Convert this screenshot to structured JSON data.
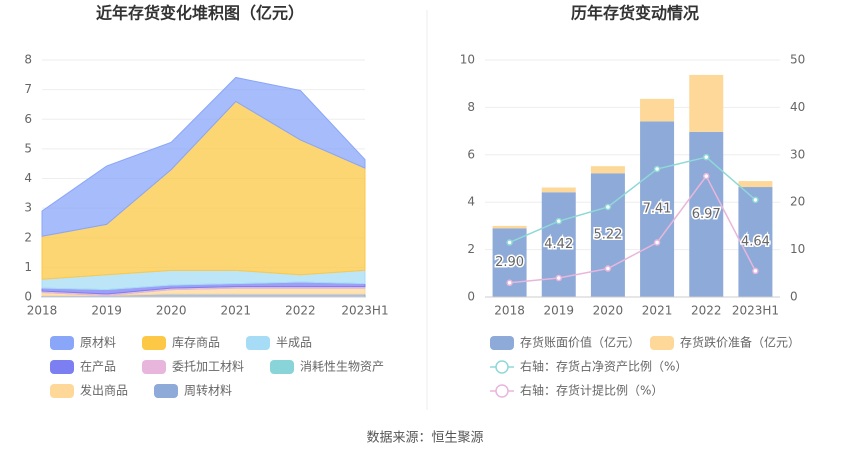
{
  "chart_data": [
    {
      "type": "stacked_area",
      "title": "近年存货变化堆积图（亿元）",
      "categories": [
        "2018",
        "2019",
        "2020",
        "2021",
        "2022",
        "2023H1"
      ],
      "ylim": [
        0,
        8
      ],
      "yticks": [
        0,
        1,
        2,
        3,
        4,
        5,
        6,
        7,
        8
      ],
      "grid": true,
      "series": [
        {
          "name": "原材料",
          "color": "#8aa6f8",
          "values": [
            0.85,
            1.97,
            0.92,
            0.81,
            1.67,
            0.29
          ]
        },
        {
          "name": "库存商品",
          "color": "#fcc846",
          "values": [
            1.45,
            1.7,
            3.4,
            5.7,
            4.55,
            3.45
          ]
        },
        {
          "name": "半成品",
          "color": "#a6dcf6",
          "values": [
            0.3,
            0.5,
            0.5,
            0.45,
            0.25,
            0.45
          ]
        },
        {
          "name": "在产品",
          "color": "#7b7ff2",
          "values": [
            0.1,
            0.15,
            0.1,
            0.1,
            0.15,
            0.1
          ]
        },
        {
          "name": "委托加工材料",
          "color": "#e8b6dc",
          "values": [
            0.05,
            0.05,
            0.05,
            0.05,
            0.05,
            0.05
          ]
        },
        {
          "name": "消耗性生物资产",
          "color": "#88d4d8",
          "values": [
            0,
            0,
            0,
            0,
            0,
            0
          ]
        },
        {
          "name": "发出商品",
          "color": "#fdd898",
          "values": [
            0.1,
            0,
            0.15,
            0.2,
            0.2,
            0.2
          ]
        },
        {
          "name": "周转材料",
          "color": "#8eaad8",
          "values": [
            0.05,
            0.05,
            0.1,
            0.1,
            0.1,
            0.1
          ]
        }
      ]
    },
    {
      "type": "bar_line",
      "title": "历年存货变动情况",
      "categories": [
        "2018",
        "2019",
        "2020",
        "2021",
        "2022",
        "2023H1"
      ],
      "ylim": [
        0,
        10
      ],
      "yticks": [
        0,
        2,
        4,
        6,
        8,
        10
      ],
      "y2lim": [
        0,
        50
      ],
      "y2ticks": [
        0,
        10,
        20,
        30,
        40,
        50
      ],
      "grid": true,
      "series": [
        {
          "name": "存货账面价值（亿元）",
          "color": "#8eaad8",
          "kind": "bar",
          "values": [
            2.9,
            4.42,
            5.22,
            7.41,
            6.97,
            4.64
          ],
          "value_labels": [
            "2.90",
            "4.42",
            "5.22",
            "7.41",
            "6.97",
            "4.64"
          ]
        },
        {
          "name": "存货跌价准备（亿元）",
          "color": "#fdd898",
          "kind": "bar",
          "values": [
            0.1,
            0.2,
            0.3,
            0.95,
            2.4,
            0.25
          ]
        },
        {
          "name": "右轴：存货占净资产比例（%）",
          "color": "#8fd8d8",
          "kind": "line",
          "axis": "y2",
          "values": [
            11.5,
            16,
            19,
            27,
            29.5,
            20.5
          ]
        },
        {
          "name": "右轴：存货计提比例（%）",
          "color": "#e8b6dc",
          "kind": "line",
          "axis": "y2",
          "values": [
            3,
            4,
            6,
            11.5,
            25.5,
            5.5
          ]
        }
      ]
    }
  ],
  "source": "数据来源：恒生聚源"
}
